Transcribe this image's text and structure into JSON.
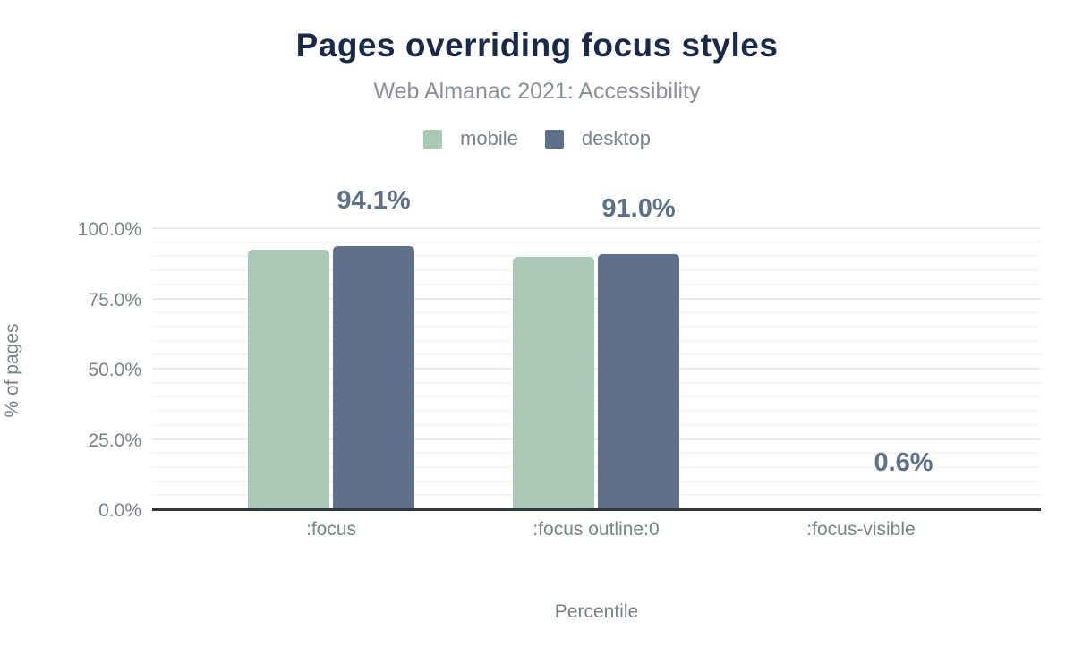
{
  "chart_data": {
    "type": "bar",
    "title": "Pages overriding focus styles",
    "subtitle": "Web Almanac 2021: Accessibility",
    "categories": [
      ":focus",
      ":focus outline:0",
      ":focus-visible"
    ],
    "series": [
      {
        "name": "mobile",
        "color": "#a9c9b6",
        "values": [
          92.6,
          90.0,
          0.2
        ]
      },
      {
        "name": "desktop",
        "color": "#5f7189",
        "values": [
          94.1,
          91.0,
          0.6
        ]
      }
    ],
    "bar_labels": {
      "series": "desktop",
      "texts": [
        "94.1%",
        "91.0%",
        "0.6%"
      ]
    },
    "xlabel": "Percentile",
    "ylabel": "% of pages",
    "ylim": [
      0,
      100
    ],
    "yticks": [
      {
        "v": 0,
        "label": "0.0%"
      },
      {
        "v": 25,
        "label": "25.0%"
      },
      {
        "v": 50,
        "label": "50.0%"
      },
      {
        "v": 75,
        "label": "75.0%"
      },
      {
        "v": 100,
        "label": "100.0%"
      }
    ],
    "minor_grid_step": 5,
    "legend_position": "top",
    "grid": true
  },
  "colors": {
    "title": "#19294a",
    "subtitle": "#8a9099",
    "axis_text": "#7b818a",
    "axis_line": "#32373d",
    "bar_label": "#5d7089"
  }
}
